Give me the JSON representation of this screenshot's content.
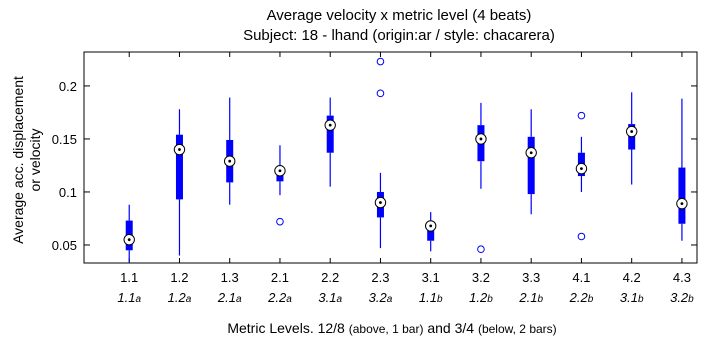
{
  "chart_data": {
    "type": "box",
    "title": "Average velocity x metric level (4 beats)",
    "subtitle": "Subject: 18 - lhand (origin:ar / style: chacarera)",
    "ylabel": [
      "Average acc. displacement",
      "or velocity"
    ],
    "xlabel": {
      "main": "Metric Levels. 12/8",
      "paren1": "(above, 1 bar)",
      "mid": "and 3/4",
      "paren2": "(below, 2 bars)"
    },
    "ylim": [
      0.033,
      0.232
    ],
    "yticks": [
      0.05,
      0.1,
      0.15,
      0.2
    ],
    "ytick_labels": [
      "0.05",
      "0.1",
      "0.15",
      "0.2"
    ],
    "grid": false,
    "box_color": "#0000ff",
    "categories": [
      "1.1",
      "1.2",
      "1.3",
      "2.1",
      "2.2",
      "2.3",
      "3.1",
      "3.2",
      "3.3",
      "4.1",
      "4.2",
      "4.3"
    ],
    "sub_labels": [
      {
        "main": "1.1",
        "sub": "a"
      },
      {
        "main": "1.2",
        "sub": "a"
      },
      {
        "main": "2.1",
        "sub": "a"
      },
      {
        "main": "2.2",
        "sub": "a"
      },
      {
        "main": "3.1",
        "sub": "a"
      },
      {
        "main": "3.2",
        "sub": "a"
      },
      {
        "main": "1.1",
        "sub": "b"
      },
      {
        "main": "1.2",
        "sub": "b"
      },
      {
        "main": "2.1",
        "sub": "b"
      },
      {
        "main": "2.2",
        "sub": "b"
      },
      {
        "main": "3.1",
        "sub": "b"
      },
      {
        "main": "3.2",
        "sub": "b"
      }
    ],
    "boxes": [
      {
        "whisker_low": 0.034,
        "q1": 0.045,
        "median": 0.055,
        "q3": 0.073,
        "whisker_high": 0.088,
        "outliers": []
      },
      {
        "whisker_low": 0.04,
        "q1": 0.093,
        "median": 0.14,
        "q3": 0.154,
        "whisker_high": 0.178,
        "outliers": []
      },
      {
        "whisker_low": 0.088,
        "q1": 0.109,
        "median": 0.129,
        "q3": 0.149,
        "whisker_high": 0.189,
        "outliers": []
      },
      {
        "whisker_low": 0.097,
        "q1": 0.11,
        "median": 0.12,
        "q3": 0.124,
        "whisker_high": 0.144,
        "outliers": [
          0.072
        ]
      },
      {
        "whisker_low": 0.105,
        "q1": 0.137,
        "median": 0.163,
        "q3": 0.172,
        "whisker_high": 0.189,
        "outliers": []
      },
      {
        "whisker_low": 0.047,
        "q1": 0.076,
        "median": 0.09,
        "q3": 0.1,
        "whisker_high": 0.118,
        "outliers": [
          0.193,
          0.223
        ]
      },
      {
        "whisker_low": 0.044,
        "q1": 0.054,
        "median": 0.068,
        "q3": 0.072,
        "whisker_high": 0.081,
        "outliers": []
      },
      {
        "whisker_low": 0.103,
        "q1": 0.129,
        "median": 0.15,
        "q3": 0.163,
        "whisker_high": 0.184,
        "outliers": [
          0.046
        ]
      },
      {
        "whisker_low": 0.079,
        "q1": 0.098,
        "median": 0.137,
        "q3": 0.152,
        "whisker_high": 0.178,
        "outliers": []
      },
      {
        "whisker_low": 0.1,
        "q1": 0.115,
        "median": 0.122,
        "q3": 0.137,
        "whisker_high": 0.152,
        "outliers": [
          0.058,
          0.172
        ]
      },
      {
        "whisker_low": 0.107,
        "q1": 0.14,
        "median": 0.157,
        "q3": 0.164,
        "whisker_high": 0.194,
        "outliers": []
      },
      {
        "whisker_low": 0.054,
        "q1": 0.07,
        "median": 0.089,
        "q3": 0.123,
        "whisker_high": 0.188,
        "outliers": []
      }
    ]
  }
}
